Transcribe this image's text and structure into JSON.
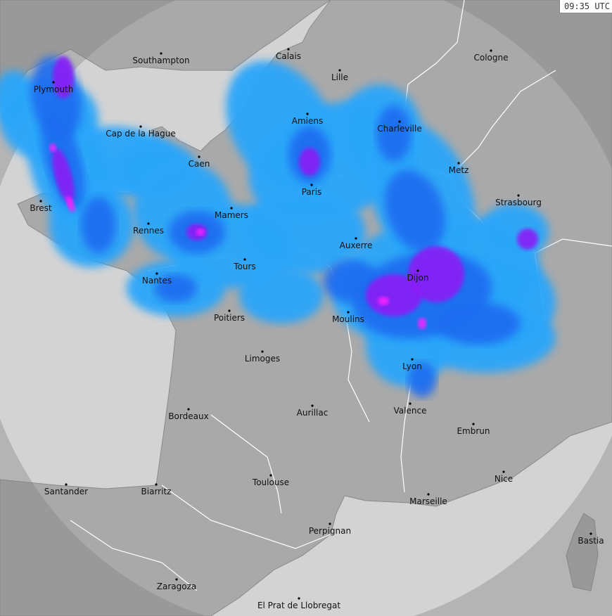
{
  "timestamp": "09:35 UTC",
  "colors": {
    "sea": "#d3d3d3",
    "land": "#a9a9a9",
    "out_of_range": "#8a8a8a",
    "borders": "#ffffff",
    "precip_light": "#2aa6fa",
    "precip_moderate": "#1e6cf0",
    "precip_heavy": "#3a3cf2",
    "precip_very_heavy": "#8a1cf6",
    "precip_extreme": "#ff20ff"
  },
  "cities": [
    {
      "name": "Southampton"
    },
    {
      "name": "Plymouth"
    },
    {
      "name": "Calais"
    },
    {
      "name": "Lille"
    },
    {
      "name": "Cologne"
    },
    {
      "name": "Amiens"
    },
    {
      "name": "Charleville"
    },
    {
      "name": "Cap de la Hague"
    },
    {
      "name": "Caen"
    },
    {
      "name": "Metz"
    },
    {
      "name": "Paris"
    },
    {
      "name": "Strasbourg"
    },
    {
      "name": "Brest"
    },
    {
      "name": "Mamers"
    },
    {
      "name": "Rennes"
    },
    {
      "name": "Auxerre"
    },
    {
      "name": "Tours"
    },
    {
      "name": "Dijon"
    },
    {
      "name": "Nantes"
    },
    {
      "name": "Poitiers"
    },
    {
      "name": "Moulins"
    },
    {
      "name": "Limoges"
    },
    {
      "name": "Lyon"
    },
    {
      "name": "Valence"
    },
    {
      "name": "Aurillac"
    },
    {
      "name": "Bordeaux"
    },
    {
      "name": "Embrun"
    },
    {
      "name": "Nice"
    },
    {
      "name": "Toulouse"
    },
    {
      "name": "Santander"
    },
    {
      "name": "Biarritz"
    },
    {
      "name": "Marseille"
    },
    {
      "name": "Perpignan"
    },
    {
      "name": "Bastia"
    },
    {
      "name": "Zaragoza"
    },
    {
      "name": "El Prat de Llobregat"
    }
  ]
}
